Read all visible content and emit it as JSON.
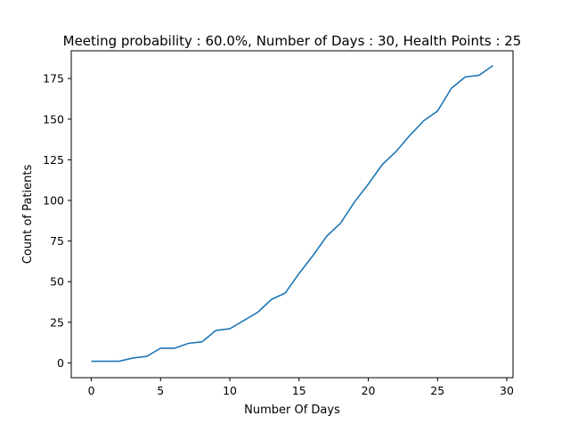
{
  "chart_data": {
    "type": "line",
    "title": "Meeting probability : 60.0%, Number of Days : 30, Health Points : 25",
    "xlabel": "Number Of Days",
    "ylabel": "Count of Patients",
    "xlim": [
      -1.45,
      30.45
    ],
    "ylim": [
      -9.1,
      192.1
    ],
    "xticks": [
      0,
      5,
      10,
      15,
      20,
      25,
      30
    ],
    "yticks": [
      0,
      25,
      50,
      75,
      100,
      125,
      150,
      175
    ],
    "grid": false,
    "x": [
      0,
      1,
      2,
      3,
      4,
      5,
      6,
      7,
      8,
      9,
      10,
      11,
      12,
      13,
      14,
      15,
      16,
      17,
      18,
      19,
      20,
      21,
      22,
      23,
      24,
      25,
      26,
      27,
      28,
      29
    ],
    "series": [
      {
        "values": [
          1,
          1,
          1,
          3,
          4,
          9,
          9,
          12,
          13,
          20,
          21,
          26,
          31,
          39,
          43,
          55,
          66,
          78,
          86,
          99,
          110,
          122,
          130,
          140,
          149,
          155,
          169,
          176,
          177,
          183
        ],
        "color": "#1f77b4"
      }
    ]
  }
}
